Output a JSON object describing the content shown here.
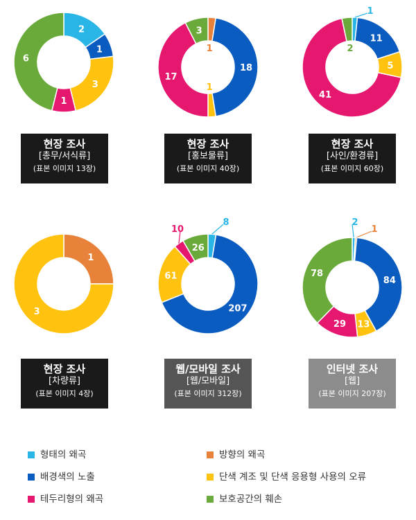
{
  "categories": [
    "형태의 왜곡",
    "방향의 왜곡",
    "배경색의 노출",
    "단색 계조 및 단색 응용형 사용의 오류",
    "테두리형의 왜곡",
    "보호공간의 훼손"
  ],
  "colors": {
    "형태의 왜곡": "#29b6e6",
    "방향의 왜곡": "#e8823a",
    "배경색의 노출": "#0a5cc0",
    "단색 계조 및 단색 응용형 사용의 오류": "#ffc20e",
    "테두리형의 왜곡": "#e5176e",
    "보호공간의 훼손": "#6aaa3a"
  },
  "chart_data": [
    {
      "type": "pie",
      "caption": [
        "현장 조사",
        "[총무/서식류]",
        "(표본 이미지 13장)"
      ],
      "caption_bg": "#1a1a1a",
      "slices": [
        {
          "category": "형태의 왜곡",
          "value": 2
        },
        {
          "category": "배경색의 노출",
          "value": 1
        },
        {
          "category": "단색 계조 및 단색 응용형 사용의 오류",
          "value": 3
        },
        {
          "category": "테두리형의 왜곡",
          "value": 1
        },
        {
          "category": "보호공간의 훼손",
          "value": 6
        }
      ]
    },
    {
      "type": "pie",
      "caption": [
        "현장 조사",
        "[홍보물류]",
        "(표본 이미지 40장)"
      ],
      "caption_bg": "#1a1a1a",
      "slices": [
        {
          "category": "방향의 왜곡",
          "value": 1
        },
        {
          "category": "배경색의 노출",
          "value": 18
        },
        {
          "category": "단색 계조 및 단색 응용형 사용의 오류",
          "value": 1
        },
        {
          "category": "테두리형의 왜곡",
          "value": 17
        },
        {
          "category": "보호공간의 훼손",
          "value": 3
        }
      ]
    },
    {
      "type": "pie",
      "caption": [
        "현장 조사",
        "[사인/환경류]",
        "(표본 이미지 60장)"
      ],
      "caption_bg": "#1a1a1a",
      "slices": [
        {
          "category": "형태의 왜곡",
          "value": 1
        },
        {
          "category": "배경색의 노출",
          "value": 11
        },
        {
          "category": "단색 계조 및 단색 응용형 사용의 오류",
          "value": 5
        },
        {
          "category": "테두리형의 왜곡",
          "value": 41
        },
        {
          "category": "보호공간의 훼손",
          "value": 2
        }
      ]
    },
    {
      "type": "pie",
      "caption": [
        "현장 조사",
        "[차량류]",
        "(표본 이미지 4장)"
      ],
      "caption_bg": "#1a1a1a",
      "slices": [
        {
          "category": "방향의 왜곡",
          "value": 1
        },
        {
          "category": "단색 계조 및 단색 응용형 사용의 오류",
          "value": 3
        }
      ]
    },
    {
      "type": "pie",
      "caption": [
        "웹/모바일 조사",
        "[웹/모바일]",
        "(표본 이미지 312장)"
      ],
      "caption_bg": "#555555",
      "slices": [
        {
          "category": "형태의 왜곡",
          "value": 8
        },
        {
          "category": "배경색의 노출",
          "value": 207
        },
        {
          "category": "단색 계조 및 단색 응용형 사용의 오류",
          "value": 61
        },
        {
          "category": "테두리형의 왜곡",
          "value": 10
        },
        {
          "category": "보호공간의 훼손",
          "value": 26
        }
      ]
    },
    {
      "type": "pie",
      "caption": [
        "인터넷 조사",
        "[웹]",
        "(표본 이미지 207장)"
      ],
      "caption_bg": "#8c8c8c",
      "slices": [
        {
          "category": "형태의 왜곡",
          "value": 2
        },
        {
          "category": "방향의 왜곡",
          "value": 1
        },
        {
          "category": "배경색의 노출",
          "value": 84
        },
        {
          "category": "단색 계조 및 단색 응용형 사용의 오류",
          "value": 13
        },
        {
          "category": "테두리형의 왜곡",
          "value": 29
        },
        {
          "category": "보호공간의 훼손",
          "value": 78
        }
      ]
    }
  ]
}
